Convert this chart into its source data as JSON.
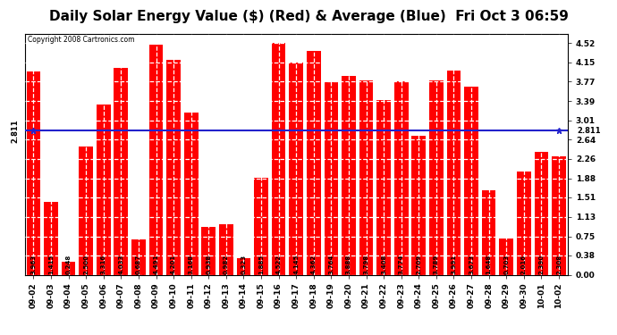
{
  "title": "Daily Solar Energy Value ($) (Red) & Average (Blue)  Fri Oct 3 06:59",
  "copyright": "Copyright 2008 Cartronics.com",
  "average": 2.811,
  "bar_color": "#FF0000",
  "average_color": "#2222CC",
  "background_color": "#FFFFFF",
  "plot_bg_color": "#FFFFFF",
  "grid_color": "#BBBBBB",
  "categories": [
    "09-02",
    "09-03",
    "09-04",
    "09-05",
    "09-06",
    "09-07",
    "09-08",
    "09-09",
    "09-10",
    "09-11",
    "09-12",
    "09-13",
    "09-14",
    "09-15",
    "09-16",
    "09-17",
    "09-18",
    "09-19",
    "09-20",
    "09-21",
    "09-22",
    "09-23",
    "09-24",
    "09-25",
    "09-26",
    "09-27",
    "09-28",
    "09-29",
    "09-30",
    "10-01",
    "10-02"
  ],
  "values": [
    3.963,
    1.415,
    0.248,
    2.5,
    3.316,
    4.033,
    0.687,
    4.491,
    4.201,
    3.168,
    0.938,
    0.982,
    0.323,
    1.885,
    4.522,
    4.145,
    4.362,
    3.764,
    3.888,
    3.798,
    3.408,
    3.774,
    2.709,
    3.789,
    3.991,
    3.673,
    1.648,
    0.703,
    2.016,
    2.39,
    2.308
  ],
  "ylim": [
    0.0,
    4.71
  ],
  "yticks": [
    0.0,
    0.38,
    0.75,
    1.13,
    1.51,
    1.88,
    2.26,
    2.64,
    3.01,
    3.39,
    3.77,
    4.15,
    4.52
  ],
  "title_fontsize": 11,
  "tick_fontsize": 6.5,
  "value_fontsize": 5.0,
  "avg_label": "2.811"
}
